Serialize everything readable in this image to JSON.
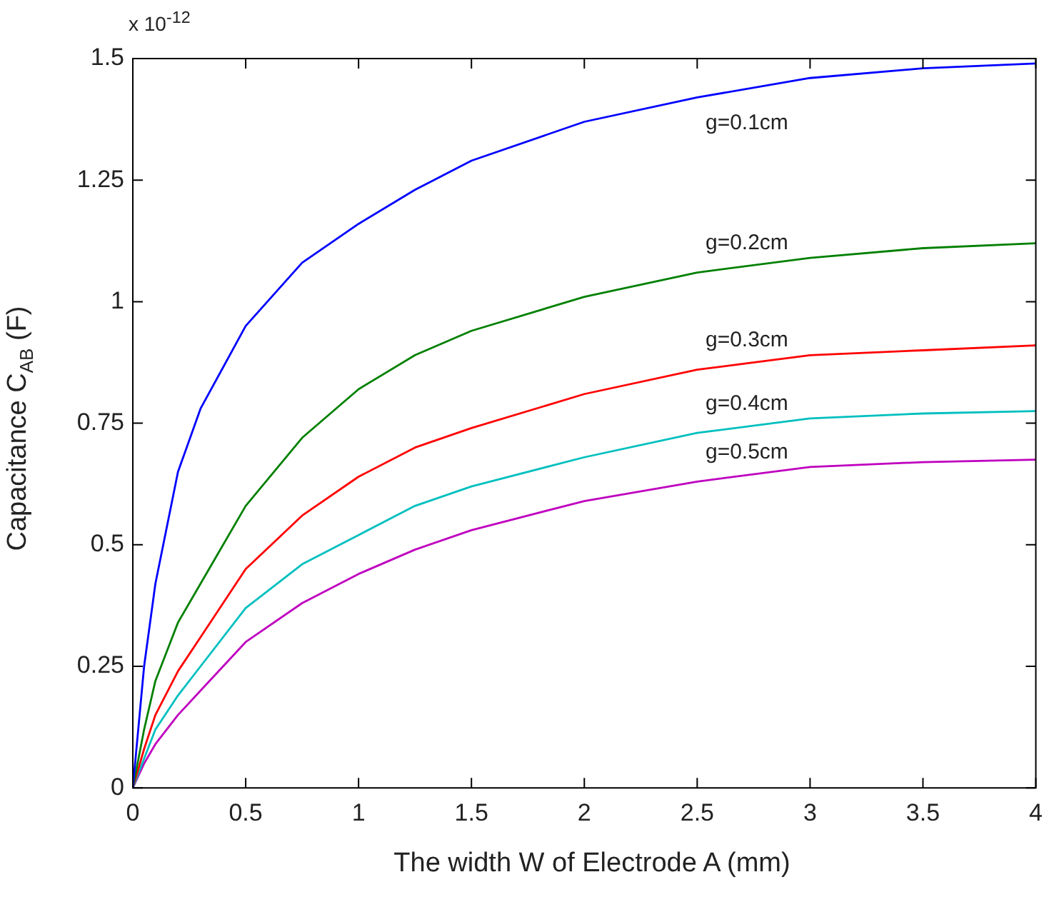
{
  "chart_data": {
    "type": "line",
    "xlabel": "The width W of Electrode A (mm)",
    "ylabel": "Capacitance C$_{AB}$ (F)",
    "xlim": [
      0,
      4
    ],
    "xticks": [
      0,
      0.5,
      1,
      1.5,
      2,
      2.5,
      3,
      3.5,
      4
    ],
    "ylim": [
      0,
      1.5
    ],
    "yticks": [
      0,
      0.25,
      0.5,
      0.75,
      1,
      1.25,
      1.5
    ],
    "grid": false,
    "legend": false,
    "marker": "none",
    "line_style": "solid",
    "x": [
      0,
      0.05,
      0.1,
      0.2,
      0.3,
      0.5,
      0.75,
      1,
      1.25,
      1.5,
      2,
      2.5,
      3,
      3.5,
      4
    ],
    "series": [
      {
        "name": "g=0.1cm",
        "color": "#0000ff",
        "values": [
          0,
          0.25,
          0.42,
          0.65,
          0.78,
          0.95,
          1.08,
          1.16,
          1.23,
          1.29,
          1.37,
          1.42,
          1.46,
          1.48,
          1.49
        ]
      },
      {
        "name": "g=0.2cm",
        "color": "#008000",
        "values": [
          0,
          0.12,
          0.22,
          0.34,
          0.42,
          0.58,
          0.72,
          0.82,
          0.89,
          0.94,
          1.01,
          1.06,
          1.09,
          1.11,
          1.12
        ]
      },
      {
        "name": "g=0.3cm",
        "color": "#ff0000",
        "values": [
          0,
          0.08,
          0.15,
          0.24,
          0.31,
          0.45,
          0.56,
          0.64,
          0.7,
          0.74,
          0.81,
          0.86,
          0.89,
          0.9,
          0.91
        ]
      },
      {
        "name": "g=0.4cm",
        "color": "#00bfbf",
        "values": [
          0,
          0.06,
          0.12,
          0.19,
          0.25,
          0.37,
          0.46,
          0.52,
          0.58,
          0.62,
          0.68,
          0.73,
          0.76,
          0.77,
          0.775
        ]
      },
      {
        "name": "g=0.5cm",
        "color": "#bf00bf",
        "values": [
          0,
          0.05,
          0.09,
          0.15,
          0.2,
          0.3,
          0.38,
          0.44,
          0.49,
          0.53,
          0.59,
          0.63,
          0.66,
          0.67,
          0.675
        ]
      }
    ],
    "annotations": [
      "x 10$^{-12}$"
    ]
  }
}
